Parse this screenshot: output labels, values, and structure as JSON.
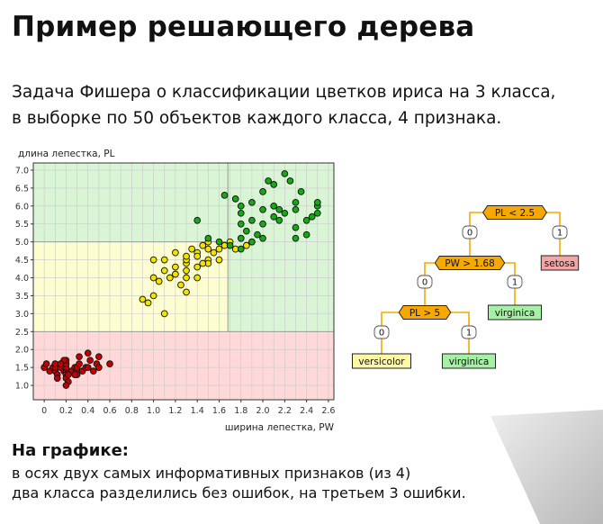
{
  "slide": {
    "title": "Пример решающего дерева",
    "subtitle_lines": [
      "Задача Фишера о классификации цветков ириса на 3 класса,",
      "в выборке по 50 объектов каждого класса, 4 признака."
    ],
    "bottom_heading": "На графике:",
    "bottom_lines": [
      "в осях двух самых информативных признаков (из 4)",
      "два класса разделились без ошибок, на третьем 3 ошибки."
    ]
  },
  "chart_data": {
    "type": "scatter",
    "ylabel": "длина лепестка, PL",
    "xlabel": "ширина лепестка, PW",
    "xlim": [
      -0.1,
      2.65
    ],
    "ylim": [
      0.6,
      7.2
    ],
    "x_ticks": [
      "0",
      "0.2",
      "0.4",
      "0.6",
      "0.8",
      "1.0",
      "1.2",
      "1.4",
      "1.6",
      "1.8",
      "2.0",
      "2.2",
      "2.4",
      "2.6"
    ],
    "y_ticks": [
      "1.0",
      "1.5",
      "2.0",
      "2.5",
      "3.0",
      "3.5",
      "4.0",
      "4.5",
      "5.0",
      "5.5",
      "6.0",
      "6.5",
      "7.0"
    ],
    "grid": true,
    "regions": [
      {
        "class": "setosa",
        "x": [
          -0.1,
          2.65
        ],
        "y": [
          0.6,
          2.5
        ],
        "color": "#ffd9d9"
      },
      {
        "class": "versicolor",
        "x": [
          -0.1,
          1.68
        ],
        "y": [
          2.5,
          5.0
        ],
        "color": "#fdfdd2"
      },
      {
        "class": "virginica",
        "x": [
          1.68,
          2.65
        ],
        "y": [
          2.5,
          7.2
        ],
        "color": "#d9f5d6"
      },
      {
        "class": "virginica",
        "x": [
          -0.1,
          1.68
        ],
        "y": [
          5.0,
          7.2
        ],
        "color": "#d9f5d6"
      }
    ],
    "series": [
      {
        "color": "#c00000",
        "points": [
          [
            0.0,
            1.5
          ],
          [
            0.02,
            1.6
          ],
          [
            0.05,
            1.4
          ],
          [
            0.08,
            1.5
          ],
          [
            0.1,
            1.4
          ],
          [
            0.1,
            1.5
          ],
          [
            0.1,
            1.6
          ],
          [
            0.12,
            1.3
          ],
          [
            0.15,
            1.5
          ],
          [
            0.18,
            1.4
          ],
          [
            0.2,
            1.4
          ],
          [
            0.2,
            1.5
          ],
          [
            0.2,
            1.6
          ],
          [
            0.2,
            1.3
          ],
          [
            0.2,
            1.2
          ],
          [
            0.2,
            1.7
          ],
          [
            0.22,
            1.1
          ],
          [
            0.2,
            1.0
          ],
          [
            0.25,
            1.4
          ],
          [
            0.28,
            1.5
          ],
          [
            0.3,
            1.4
          ],
          [
            0.3,
            1.5
          ],
          [
            0.3,
            1.3
          ],
          [
            0.32,
            1.6
          ],
          [
            0.35,
            1.4
          ],
          [
            0.38,
            1.5
          ],
          [
            0.4,
            1.5
          ],
          [
            0.4,
            1.9
          ],
          [
            0.42,
            1.7
          ],
          [
            0.45,
            1.4
          ],
          [
            0.48,
            1.6
          ],
          [
            0.5,
            1.8
          ],
          [
            0.5,
            1.5
          ],
          [
            0.12,
            1.2
          ],
          [
            0.18,
            1.7
          ],
          [
            0.22,
            1.3
          ],
          [
            0.28,
            1.3
          ],
          [
            0.32,
            1.8
          ],
          [
            0.6,
            1.6
          ],
          [
            0.15,
            1.6
          ]
        ]
      },
      {
        "color": "#f2e200",
        "points": [
          [
            0.9,
            3.4
          ],
          [
            0.95,
            3.3
          ],
          [
            1.0,
            3.5
          ],
          [
            1.0,
            4.0
          ],
          [
            1.0,
            4.5
          ],
          [
            1.05,
            3.9
          ],
          [
            1.1,
            4.2
          ],
          [
            1.1,
            4.5
          ],
          [
            1.1,
            3.0
          ],
          [
            1.15,
            4.0
          ],
          [
            1.2,
            4.1
          ],
          [
            1.2,
            4.3
          ],
          [
            1.2,
            4.7
          ],
          [
            1.25,
            3.8
          ],
          [
            1.3,
            4.0
          ],
          [
            1.3,
            4.2
          ],
          [
            1.3,
            4.4
          ],
          [
            1.3,
            4.5
          ],
          [
            1.3,
            4.6
          ],
          [
            1.3,
            3.6
          ],
          [
            1.35,
            4.8
          ],
          [
            1.4,
            4.7
          ],
          [
            1.4,
            4.0
          ],
          [
            1.4,
            4.3
          ],
          [
            1.4,
            4.6
          ],
          [
            1.45,
            4.9
          ],
          [
            1.5,
            4.5
          ],
          [
            1.5,
            4.8
          ],
          [
            1.5,
            5.0
          ],
          [
            1.5,
            4.4
          ],
          [
            1.55,
            4.7
          ],
          [
            1.6,
            4.8
          ],
          [
            1.6,
            4.5
          ],
          [
            1.65,
            4.9
          ],
          [
            1.7,
            5.0
          ],
          [
            1.75,
            4.8
          ],
          [
            1.8,
            5.1
          ],
          [
            1.85,
            4.9
          ],
          [
            1.9,
            5.0
          ],
          [
            1.45,
            4.4
          ]
        ]
      },
      {
        "color": "#1aa51a",
        "points": [
          [
            1.4,
            5.6
          ],
          [
            1.5,
            5.1
          ],
          [
            1.6,
            5.0
          ],
          [
            1.7,
            4.9
          ],
          [
            1.8,
            4.8
          ],
          [
            1.8,
            5.1
          ],
          [
            1.8,
            5.5
          ],
          [
            1.8,
            5.8
          ],
          [
            1.8,
            6.0
          ],
          [
            1.85,
            5.3
          ],
          [
            1.9,
            5.0
          ],
          [
            1.9,
            5.6
          ],
          [
            1.9,
            6.1
          ],
          [
            2.0,
            5.1
          ],
          [
            2.0,
            5.5
          ],
          [
            2.0,
            5.9
          ],
          [
            2.0,
            6.4
          ],
          [
            2.05,
            6.7
          ],
          [
            2.1,
            5.7
          ],
          [
            2.1,
            6.0
          ],
          [
            2.1,
            6.6
          ],
          [
            2.15,
            5.6
          ],
          [
            2.2,
            5.8
          ],
          [
            2.2,
            6.9
          ],
          [
            2.25,
            6.7
          ],
          [
            2.3,
            5.1
          ],
          [
            2.3,
            5.4
          ],
          [
            2.3,
            5.9
          ],
          [
            2.3,
            6.1
          ],
          [
            2.35,
            6.4
          ],
          [
            2.4,
            5.6
          ],
          [
            2.4,
            5.2
          ],
          [
            2.45,
            5.7
          ],
          [
            2.5,
            6.0
          ],
          [
            2.5,
            5.8
          ],
          [
            2.5,
            6.1
          ],
          [
            1.75,
            6.2
          ],
          [
            1.95,
            5.2
          ],
          [
            2.15,
            5.9
          ],
          [
            1.65,
            6.3
          ]
        ]
      }
    ]
  },
  "tree": {
    "nodes": [
      {
        "id": "root",
        "kind": "condition",
        "label": "PL < 2.5"
      },
      {
        "id": "e_root_0",
        "kind": "edge",
        "label": "0"
      },
      {
        "id": "e_root_1",
        "kind": "edge",
        "label": "1"
      },
      {
        "id": "setosa",
        "kind": "leaf",
        "label": "setosa",
        "color": "#f4a6a6"
      },
      {
        "id": "pw",
        "kind": "condition",
        "label": "PW > 1.68"
      },
      {
        "id": "e_pw_0",
        "kind": "edge",
        "label": "0"
      },
      {
        "id": "e_pw_1",
        "kind": "edge",
        "label": "1"
      },
      {
        "id": "virginica_a",
        "kind": "leaf",
        "label": "virginica",
        "color": "#a6f0a6"
      },
      {
        "id": "pl",
        "kind": "condition",
        "label": "PL > 5"
      },
      {
        "id": "e_pl_0",
        "kind": "edge",
        "label": "0"
      },
      {
        "id": "e_pl_1",
        "kind": "edge",
        "label": "1"
      },
      {
        "id": "versicolor",
        "kind": "leaf",
        "label": "versicolor",
        "color": "#fdf7a6"
      },
      {
        "id": "virginica_b",
        "kind": "leaf",
        "label": "virginica",
        "color": "#a6f0a6"
      }
    ],
    "node_color": "#f5a800",
    "edge_color": "#f5a800"
  }
}
